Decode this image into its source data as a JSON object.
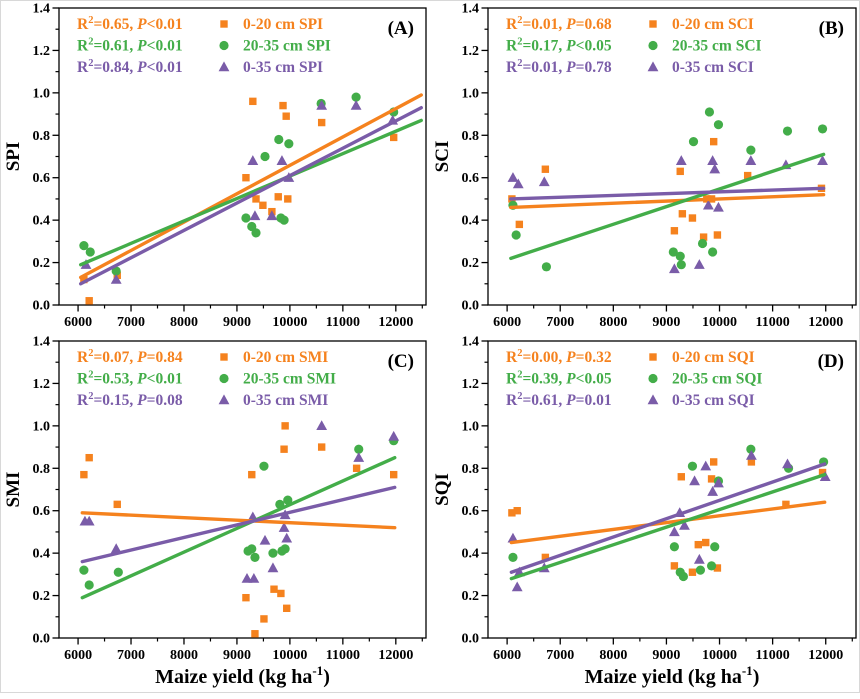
{
  "figure": {
    "xlabel": {
      "pre": "Maize yield (kg ha",
      "sup": "-1",
      "post": ")"
    },
    "colors": {
      "orange": "#F5821E",
      "green": "#43AD49",
      "purple": "#7A5CA8",
      "axis": "#000000"
    },
    "axes": {
      "x": {
        "min": 5640,
        "max": 12570,
        "major_ticks": [
          6000,
          7000,
          8000,
          9000,
          10000,
          11000,
          12000
        ],
        "minor_ticks": [
          6500,
          7500,
          8500,
          9500,
          10500,
          11500,
          12500
        ],
        "grid": false
      },
      "y": {
        "min": 0.0,
        "max": 1.4,
        "major_ticks": [
          0.0,
          0.2,
          0.4,
          0.6,
          0.8,
          1.0,
          1.2,
          1.4
        ],
        "minor_ticks": [
          0.1,
          0.3,
          0.5,
          0.7,
          0.9,
          1.1,
          1.3
        ],
        "grid": false
      }
    }
  },
  "chart_data": [
    {
      "type": "scatter",
      "panel_label": "(A)",
      "ylabel": "SPI",
      "show_xlabel": false,
      "legend_position": "top-inside",
      "stats": [
        {
          "r2": "0.65",
          "p": "<0.01",
          "color_key": "orange"
        },
        {
          "r2": "0.61",
          "p": "<0.01",
          "color_key": "green"
        },
        {
          "r2": "0.84",
          "p": "<0.01",
          "color_key": "purple"
        }
      ],
      "series": [
        {
          "name": "0-20 cm SPI",
          "color_key": "orange",
          "marker": "square",
          "points": [
            [
              6110,
              0.12
            ],
            [
              6210,
              0.02
            ],
            [
              6740,
              0.14
            ],
            [
              9170,
              0.6
            ],
            [
              9300,
              0.96
            ],
            [
              9360,
              0.5
            ],
            [
              9490,
              0.47
            ],
            [
              9660,
              0.44
            ],
            [
              9780,
              0.51
            ],
            [
              9870,
              0.94
            ],
            [
              9930,
              0.89
            ],
            [
              9960,
              0.5
            ],
            [
              10600,
              0.86
            ],
            [
              11960,
              0.79
            ]
          ],
          "trend": [
            [
              6050,
              0.13
            ],
            [
              12480,
              0.99
            ]
          ]
        },
        {
          "name": "20-35 cm SPI",
          "color_key": "green",
          "marker": "circle",
          "points": [
            [
              6110,
              0.28
            ],
            [
              6230,
              0.25
            ],
            [
              6720,
              0.16
            ],
            [
              9170,
              0.41
            ],
            [
              9280,
              0.37
            ],
            [
              9360,
              0.34
            ],
            [
              9530,
              0.7
            ],
            [
              9790,
              0.78
            ],
            [
              9830,
              0.41
            ],
            [
              9890,
              0.4
            ],
            [
              9980,
              0.76
            ],
            [
              10590,
              0.95
            ],
            [
              11250,
              0.98
            ],
            [
              11960,
              0.91
            ]
          ],
          "trend": [
            [
              6050,
              0.19
            ],
            [
              12480,
              0.87
            ]
          ]
        },
        {
          "name": "0-35 cm SPI",
          "color_key": "purple",
          "marker": "triangle",
          "points": [
            [
              6150,
              0.19
            ],
            [
              6720,
              0.12
            ],
            [
              9300,
              0.68
            ],
            [
              9340,
              0.42
            ],
            [
              9660,
              0.42
            ],
            [
              9850,
              0.68
            ],
            [
              9980,
              0.6
            ],
            [
              10600,
              0.94
            ],
            [
              11250,
              0.94
            ],
            [
              11940,
              0.87
            ]
          ],
          "trend": [
            [
              6050,
              0.1
            ],
            [
              12480,
              0.93
            ]
          ]
        }
      ]
    },
    {
      "type": "scatter",
      "panel_label": "(B)",
      "ylabel": "SCI",
      "show_xlabel": false,
      "legend_position": "top-inside",
      "stats": [
        {
          "r2": "0.01",
          "p": "=0.68",
          "color_key": "orange"
        },
        {
          "r2": "0.17",
          "p": "<0.05",
          "color_key": "green"
        },
        {
          "r2": "0.01",
          "p": "=0.78",
          "color_key": "purple"
        }
      ],
      "series": [
        {
          "name": "0-20 cm SCI",
          "color_key": "orange",
          "marker": "square",
          "points": [
            [
              6090,
              0.5
            ],
            [
              6230,
              0.38
            ],
            [
              6720,
              0.64
            ],
            [
              9150,
              0.35
            ],
            [
              9260,
              0.63
            ],
            [
              9300,
              0.43
            ],
            [
              9490,
              0.41
            ],
            [
              9700,
              0.32
            ],
            [
              9760,
              0.5
            ],
            [
              9850,
              0.5
            ],
            [
              9890,
              0.77
            ],
            [
              9960,
              0.33
            ],
            [
              10530,
              0.61
            ],
            [
              11920,
              0.55
            ]
          ],
          "trend": [
            [
              6070,
              0.46
            ],
            [
              11960,
              0.52
            ]
          ]
        },
        {
          "name": "20-35 cm SCI",
          "color_key": "green",
          "marker": "circle",
          "points": [
            [
              6110,
              0.47
            ],
            [
              6170,
              0.33
            ],
            [
              6740,
              0.18
            ],
            [
              9130,
              0.25
            ],
            [
              9260,
              0.23
            ],
            [
              9280,
              0.19
            ],
            [
              9510,
              0.77
            ],
            [
              9680,
              0.29
            ],
            [
              9810,
              0.91
            ],
            [
              9870,
              0.25
            ],
            [
              9980,
              0.85
            ],
            [
              10590,
              0.73
            ],
            [
              11280,
              0.82
            ],
            [
              11940,
              0.83
            ]
          ],
          "trend": [
            [
              6070,
              0.22
            ],
            [
              11960,
              0.71
            ]
          ]
        },
        {
          "name": "0-35 cm SCI",
          "color_key": "purple",
          "marker": "triangle",
          "points": [
            [
              6110,
              0.6
            ],
            [
              6210,
              0.57
            ],
            [
              6700,
              0.58
            ],
            [
              9150,
              0.17
            ],
            [
              9280,
              0.68
            ],
            [
              9620,
              0.19
            ],
            [
              9790,
              0.47
            ],
            [
              9870,
              0.68
            ],
            [
              9910,
              0.64
            ],
            [
              9980,
              0.46
            ],
            [
              10590,
              0.68
            ],
            [
              11250,
              0.66
            ],
            [
              11940,
              0.68
            ]
          ],
          "trend": [
            [
              6070,
              0.5
            ],
            [
              11960,
              0.55
            ]
          ]
        }
      ]
    },
    {
      "type": "scatter",
      "panel_label": "(C)",
      "ylabel": "SMI",
      "show_xlabel": true,
      "legend_position": "top-inside",
      "stats": [
        {
          "r2": "0.07",
          "p": "=0.84",
          "color_key": "orange"
        },
        {
          "r2": "0.53",
          "p": "<0.01",
          "color_key": "green"
        },
        {
          "r2": "0.15",
          "p": "=0.08",
          "color_key": "purple"
        }
      ],
      "series": [
        {
          "name": "0-20 cm SMI",
          "color_key": "orange",
          "marker": "square",
          "points": [
            [
              6110,
              0.77
            ],
            [
              6210,
              0.85
            ],
            [
              6740,
              0.63
            ],
            [
              9170,
              0.19
            ],
            [
              9280,
              0.77
            ],
            [
              9340,
              0.02
            ],
            [
              9510,
              0.09
            ],
            [
              9700,
              0.23
            ],
            [
              9830,
              0.21
            ],
            [
              9890,
              0.89
            ],
            [
              9910,
              1.0
            ],
            [
              9940,
              0.14
            ],
            [
              10600,
              0.9
            ],
            [
              11260,
              0.8
            ],
            [
              11960,
              0.77
            ]
          ],
          "trend": [
            [
              6080,
              0.59
            ],
            [
              11980,
              0.52
            ]
          ]
        },
        {
          "name": "20-35 cm SMI",
          "color_key": "green",
          "marker": "circle",
          "points": [
            [
              6110,
              0.32
            ],
            [
              6210,
              0.25
            ],
            [
              6760,
              0.31
            ],
            [
              9210,
              0.41
            ],
            [
              9280,
              0.42
            ],
            [
              9340,
              0.38
            ],
            [
              9510,
              0.81
            ],
            [
              9680,
              0.4
            ],
            [
              9810,
              0.63
            ],
            [
              9850,
              0.41
            ],
            [
              9910,
              0.42
            ],
            [
              9960,
              0.65
            ],
            [
              11300,
              0.89
            ],
            [
              11960,
              0.93
            ]
          ],
          "trend": [
            [
              6080,
              0.19
            ],
            [
              11980,
              0.85
            ]
          ]
        },
        {
          "name": "0-35 cm SMI",
          "color_key": "purple",
          "marker": "triangle",
          "points": [
            [
              6130,
              0.55
            ],
            [
              6210,
              0.55
            ],
            [
              6720,
              0.42
            ],
            [
              9190,
              0.28
            ],
            [
              9300,
              0.57
            ],
            [
              9320,
              0.28
            ],
            [
              9530,
              0.46
            ],
            [
              9680,
              0.33
            ],
            [
              9890,
              0.52
            ],
            [
              9910,
              0.58
            ],
            [
              9940,
              0.47
            ],
            [
              10600,
              1.0
            ],
            [
              11300,
              0.85
            ],
            [
              11960,
              0.95
            ]
          ],
          "trend": [
            [
              6080,
              0.36
            ],
            [
              11980,
              0.71
            ]
          ]
        }
      ]
    },
    {
      "type": "scatter",
      "panel_label": "(D)",
      "ylabel": "SQI",
      "show_xlabel": true,
      "legend_position": "top-inside",
      "stats": [
        {
          "r2": "0.00",
          "p": "=0.32",
          "color_key": "orange"
        },
        {
          "r2": "0.39",
          "p": "<0.05",
          "color_key": "green"
        },
        {
          "r2": "0.61",
          "p": "=0.01",
          "color_key": "purple"
        }
      ],
      "series": [
        {
          "name": "0-20 cm SQI",
          "color_key": "orange",
          "marker": "square",
          "points": [
            [
              6090,
              0.59
            ],
            [
              6190,
              0.6
            ],
            [
              6720,
              0.38
            ],
            [
              9150,
              0.34
            ],
            [
              9280,
              0.76
            ],
            [
              9490,
              0.31
            ],
            [
              9600,
              0.44
            ],
            [
              9740,
              0.45
            ],
            [
              9850,
              0.75
            ],
            [
              9890,
              0.83
            ],
            [
              9960,
              0.33
            ],
            [
              10600,
              0.83
            ],
            [
              11250,
              0.63
            ],
            [
              11940,
              0.78
            ]
          ],
          "trend": [
            [
              6080,
              0.45
            ],
            [
              11980,
              0.64
            ]
          ]
        },
        {
          "name": "20-35 cm SQI",
          "color_key": "green",
          "marker": "circle",
          "points": [
            [
              6110,
              0.38
            ],
            [
              9150,
              0.43
            ],
            [
              9260,
              0.31
            ],
            [
              9320,
              0.29
            ],
            [
              9490,
              0.81
            ],
            [
              9640,
              0.32
            ],
            [
              9850,
              0.34
            ],
            [
              9910,
              0.43
            ],
            [
              9980,
              0.74
            ],
            [
              10590,
              0.89
            ],
            [
              11300,
              0.8
            ],
            [
              11960,
              0.83
            ]
          ],
          "trend": [
            [
              6080,
              0.28
            ],
            [
              11980,
              0.77
            ]
          ]
        },
        {
          "name": "0-35 cm SQI",
          "color_key": "purple",
          "marker": "triangle",
          "points": [
            [
              6110,
              0.47
            ],
            [
              6190,
              0.24
            ],
            [
              6230,
              0.31
            ],
            [
              6700,
              0.33
            ],
            [
              9150,
              0.5
            ],
            [
              9250,
              0.59
            ],
            [
              9340,
              0.53
            ],
            [
              9530,
              0.74
            ],
            [
              9620,
              0.37
            ],
            [
              9740,
              0.81
            ],
            [
              9870,
              0.69
            ],
            [
              9980,
              0.73
            ],
            [
              10600,
              0.86
            ],
            [
              11280,
              0.82
            ],
            [
              11990,
              0.76
            ]
          ],
          "trend": [
            [
              6080,
              0.31
            ],
            [
              11980,
              0.82
            ]
          ]
        }
      ]
    }
  ]
}
